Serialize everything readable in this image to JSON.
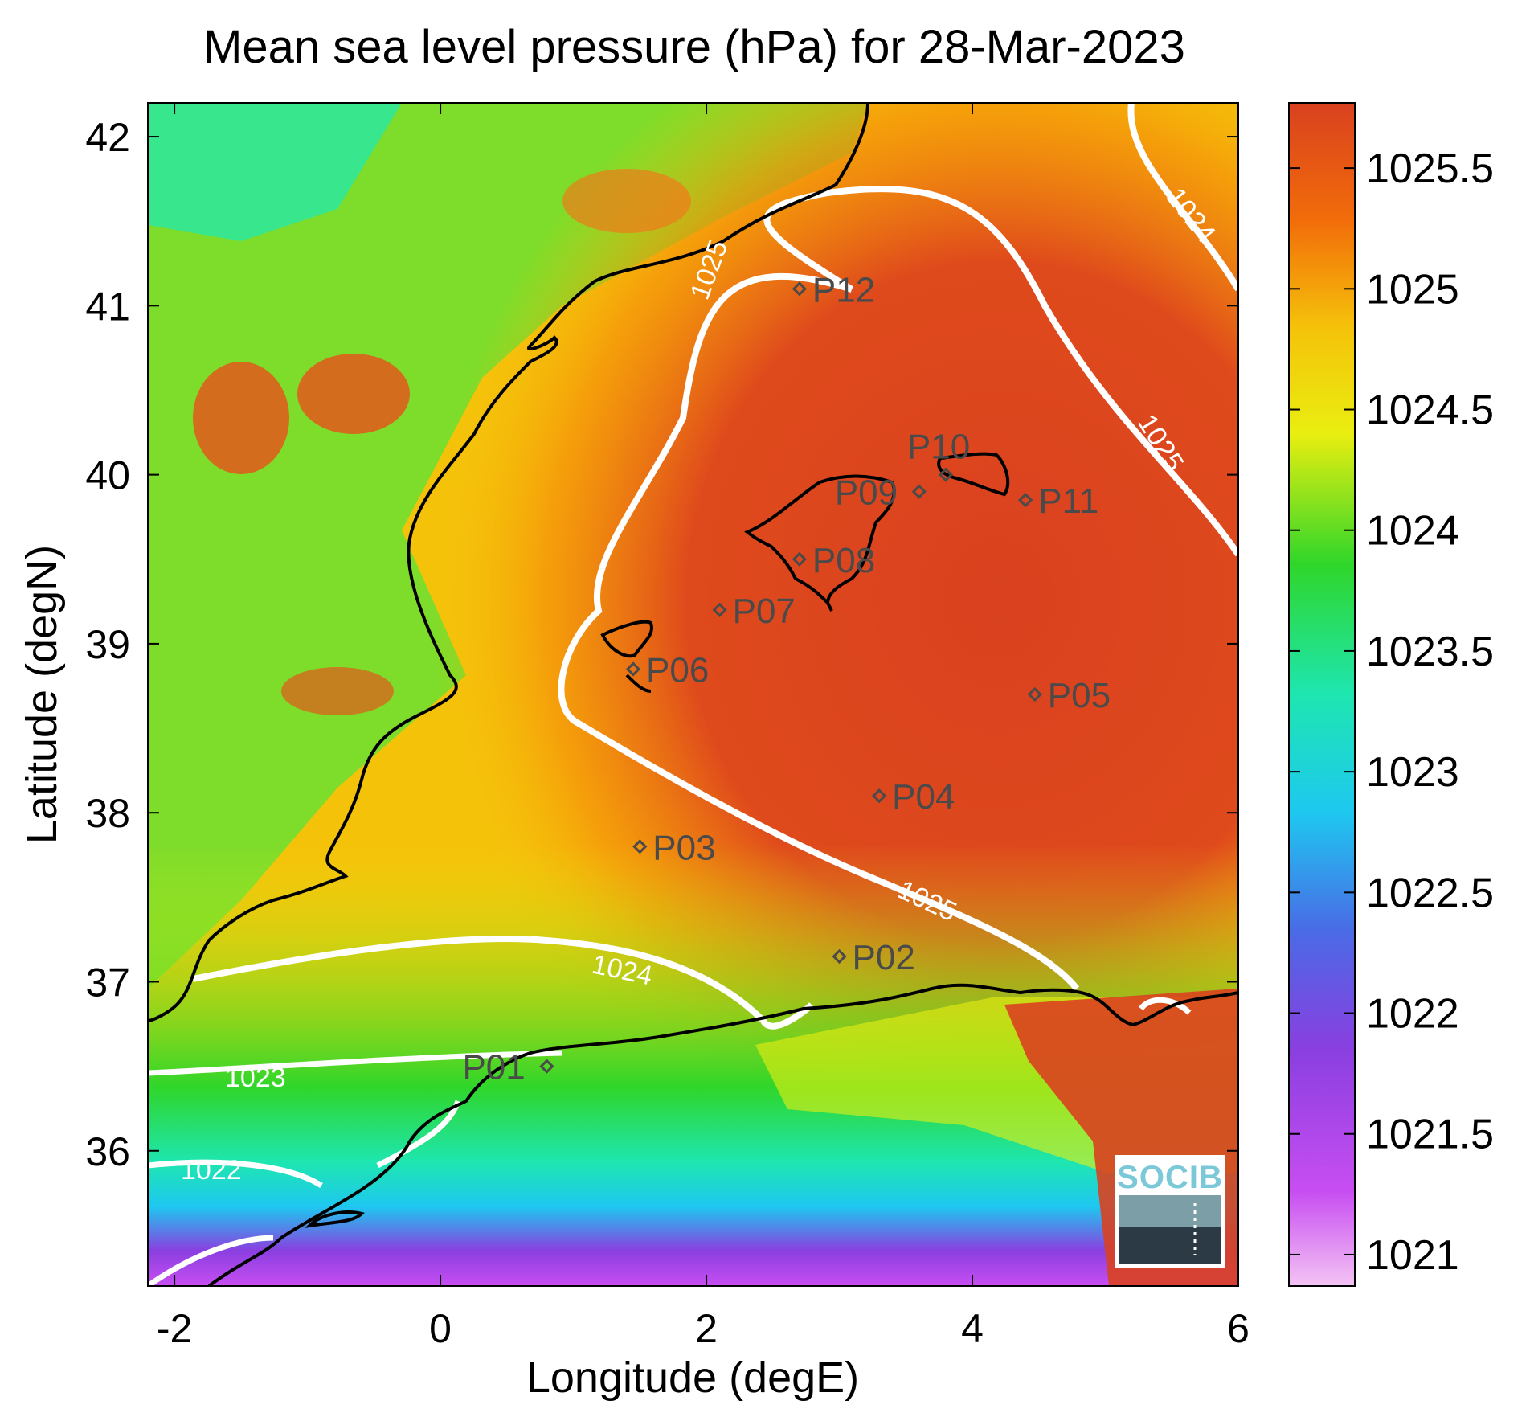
{
  "title": "Mean sea level pressure (hPa) for 28-Mar-2023",
  "xlabel": "Longitude (degE)",
  "ylabel": "Latitude (degN)",
  "x_ticks": [
    "-2",
    "0",
    "2",
    "4",
    "6"
  ],
  "y_ticks": [
    "42",
    "41",
    "40",
    "39",
    "38",
    "37",
    "36"
  ],
  "colorbar": {
    "ticks": [
      "1025.5",
      "1025",
      "1024.5",
      "1024",
      "1023.5",
      "1023",
      "1022.5",
      "1022",
      "1021.5",
      "1021"
    ],
    "colors": [
      "#d9411f",
      "#f26d0a",
      "#f5c20a",
      "#e9ee10",
      "#2fd62a",
      "#1ee6b0",
      "#1ec8f0",
      "#4a6ae6",
      "#8a3fe0",
      "#c84ef2",
      "#f3c3f3"
    ]
  },
  "stations": [
    {
      "id": "P01",
      "lon": 0.8,
      "lat": 36.5
    },
    {
      "id": "P02",
      "lon": 3.0,
      "lat": 37.15
    },
    {
      "id": "P03",
      "lon": 1.5,
      "lat": 37.8
    },
    {
      "id": "P04",
      "lon": 3.3,
      "lat": 38.1
    },
    {
      "id": "P05",
      "lon": 4.47,
      "lat": 38.7
    },
    {
      "id": "P06",
      "lon": 1.45,
      "lat": 38.85
    },
    {
      "id": "P07",
      "lon": 2.1,
      "lat": 39.2
    },
    {
      "id": "P08",
      "lon": 2.7,
      "lat": 39.5
    },
    {
      "id": "P09",
      "lon": 3.6,
      "lat": 39.9
    },
    {
      "id": "P10",
      "lon": 3.8,
      "lat": 40.0
    },
    {
      "id": "P11",
      "lon": 4.4,
      "lat": 39.85
    },
    {
      "id": "P12",
      "lon": 2.7,
      "lat": 41.1
    }
  ],
  "contour_labels": [
    "1025",
    "1025",
    "1025",
    "1024",
    "1024",
    "1023",
    "1022"
  ],
  "logo": "SOCIB"
}
